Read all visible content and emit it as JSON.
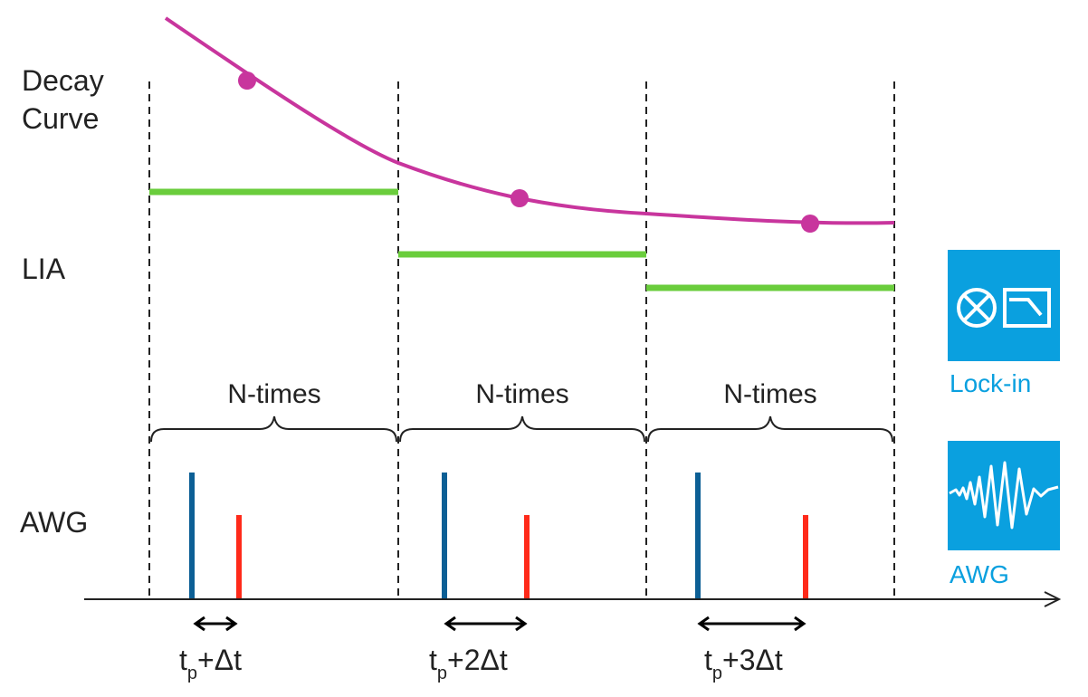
{
  "labels": {
    "decay_line1": "Decay",
    "decay_line2": "Curve",
    "lia": "LIA",
    "awg": "AWG"
  },
  "segments": [
    {
      "repeat": "N-times",
      "delay_main": "t",
      "delay_sub": "p",
      "delay_rest": "+Δt",
      "delay_tail": ""
    },
    {
      "repeat": "N-times",
      "delay_main": "t",
      "delay_sub": "p",
      "delay_rest": "+2",
      "delay_tail": "Δt"
    },
    {
      "repeat": "N-times",
      "delay_main": "t",
      "delay_sub": "p",
      "delay_rest": "+3",
      "delay_tail": "Δt"
    }
  ],
  "icons": {
    "lockin": {
      "name": "lock-in-icon",
      "caption": "Lock-in"
    },
    "awg": {
      "name": "awg-waveform-icon",
      "caption": "AWG"
    }
  },
  "colors": {
    "decay_curve": "#c8359d",
    "lia_level": "#6acd3c",
    "pulse_pump": "#0c5f95",
    "pulse_probe": "#ff2a1a",
    "icon_bg": "#0aa0df",
    "icon_caption": "#0aa0df",
    "dashed": "#222222",
    "axis": "#222222"
  }
}
